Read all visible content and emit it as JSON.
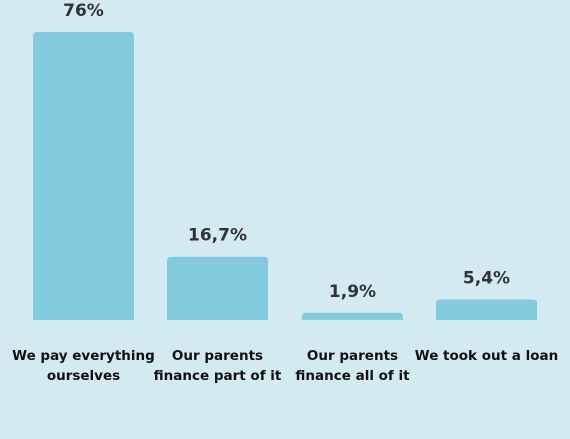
{
  "chart_data": {
    "type": "bar",
    "categories": [
      [
        "We pay everything",
        "ourselves"
      ],
      [
        "Our parents",
        "finance part of it"
      ],
      [
        "Our parents",
        "finance all of it"
      ],
      [
        "We took out a loan"
      ]
    ],
    "values": [
      76,
      16.7,
      1.9,
      5.4
    ],
    "value_labels": [
      "76%",
      "16,7%",
      "1,9%",
      "5,4%"
    ],
    "ylim": [
      0,
      76
    ],
    "grid": false,
    "legend": "none"
  },
  "colors": {
    "background": "#d4eaf1",
    "bar": "#84cade",
    "value_text": "#2f3337",
    "category_text": "#111111"
  }
}
